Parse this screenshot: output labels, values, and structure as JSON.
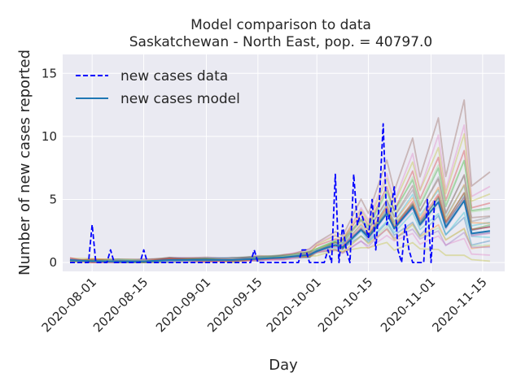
{
  "chart_data": {
    "type": "line",
    "title": "Model comparison to data",
    "subtitle": "Saskatchewan - North East, pop. = 40797.0",
    "xlabel": "Day",
    "ylabel": "Number of new cases reported",
    "x_ticks": [
      "2020-08-01",
      "2020-08-15",
      "2020-09-01",
      "2020-09-15",
      "2020-10-01",
      "2020-10-15",
      "2020-11-01",
      "2020-11-15"
    ],
    "y_ticks": [
      "0",
      "5",
      "10",
      "15"
    ],
    "xlim": [
      "2020-07-24",
      "2020-11-21"
    ],
    "ylim": [
      -0.7,
      16.5
    ],
    "grid": true,
    "legend_position": "top-left",
    "colors": {
      "background": "#eaeaf2",
      "grid": "#ffffff",
      "data_line": "#0000ff",
      "model_line": "#1f77b4"
    },
    "series": [
      {
        "name": "new cases data",
        "style": "dashed",
        "x": [
          "2020-07-26",
          "2020-07-27",
          "2020-07-28",
          "2020-07-29",
          "2020-07-30",
          "2020-07-31",
          "2020-08-01",
          "2020-08-02",
          "2020-08-03",
          "2020-08-04",
          "2020-08-05",
          "2020-08-06",
          "2020-08-07",
          "2020-08-08",
          "2020-08-09",
          "2020-08-10",
          "2020-08-11",
          "2020-08-12",
          "2020-08-13",
          "2020-08-14",
          "2020-08-15",
          "2020-08-16",
          "2020-08-17",
          "2020-08-18",
          "2020-08-19",
          "2020-08-20",
          "2020-08-22",
          "2020-08-25",
          "2020-08-29",
          "2020-09-01",
          "2020-09-05",
          "2020-09-09",
          "2020-09-12",
          "2020-09-13",
          "2020-09-14",
          "2020-09-15",
          "2020-09-16",
          "2020-09-20",
          "2020-09-24",
          "2020-09-26",
          "2020-09-27",
          "2020-09-28",
          "2020-09-29",
          "2020-09-30",
          "2020-10-01",
          "2020-10-02",
          "2020-10-03",
          "2020-10-04",
          "2020-10-05",
          "2020-10-06",
          "2020-10-07",
          "2020-10-08",
          "2020-10-09",
          "2020-10-10",
          "2020-10-11",
          "2020-10-12",
          "2020-10-13",
          "2020-10-14",
          "2020-10-15",
          "2020-10-16",
          "2020-10-17",
          "2020-10-18",
          "2020-10-19",
          "2020-10-20",
          "2020-10-21",
          "2020-10-22",
          "2020-10-23",
          "2020-10-24",
          "2020-10-25",
          "2020-10-26",
          "2020-10-27",
          "2020-10-28",
          "2020-10-29",
          "2020-10-30",
          "2020-10-31",
          "2020-11-01",
          "2020-11-02"
        ],
        "values": [
          0,
          0,
          0,
          0,
          0,
          0,
          3,
          0,
          0,
          0,
          0,
          1,
          0,
          0,
          0,
          0,
          0,
          0,
          0,
          0,
          1,
          0,
          0,
          0,
          0,
          0,
          0,
          0,
          0,
          0,
          0,
          0,
          0,
          0,
          1,
          0,
          0,
          0,
          0,
          0,
          1,
          1,
          0,
          0,
          0,
          0,
          0,
          1,
          0,
          7,
          0,
          3,
          1,
          0,
          7,
          3,
          4,
          3,
          2,
          5,
          1,
          5,
          11,
          3,
          4,
          6,
          1,
          0,
          3,
          1,
          0,
          0,
          0,
          0,
          5,
          0,
          5
        ]
      },
      {
        "name": "new cases model",
        "style": "solid",
        "x": [
          "2020-07-26",
          "2020-08-01",
          "2020-08-08",
          "2020-08-15",
          "2020-08-22",
          "2020-09-01",
          "2020-09-08",
          "2020-09-15",
          "2020-09-22",
          "2020-09-29",
          "2020-10-01",
          "2020-10-06",
          "2020-10-08",
          "2020-10-13",
          "2020-10-15",
          "2020-10-20",
          "2020-10-22",
          "2020-10-27",
          "2020-10-29",
          "2020-11-03",
          "2020-11-05",
          "2020-11-10",
          "2020-11-12",
          "2020-11-17"
        ],
        "values": [
          0.2,
          0.1,
          0.1,
          0.1,
          0.2,
          0.2,
          0.2,
          0.3,
          0.4,
          0.6,
          0.9,
          1.4,
          1.2,
          2.6,
          2.0,
          3.9,
          2.7,
          4.4,
          3.0,
          4.8,
          2.8,
          4.9,
          2.3,
          2.5
        ]
      }
    ]
  }
}
